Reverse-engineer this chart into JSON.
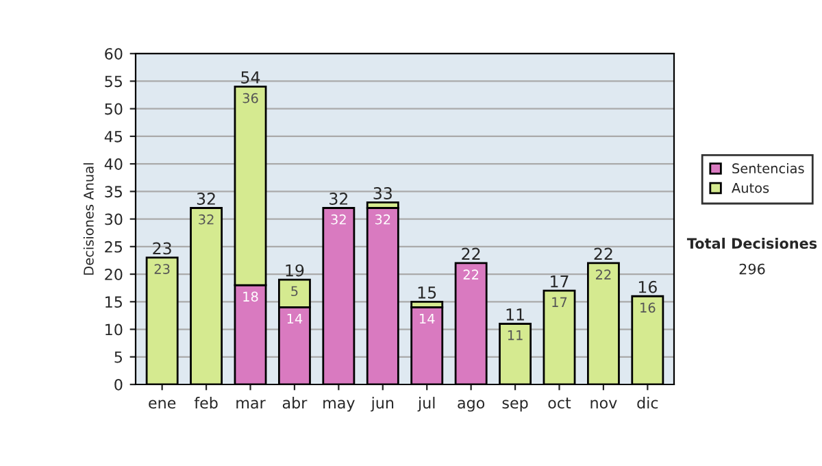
{
  "chart_data": {
    "type": "bar",
    "stacked": true,
    "ylabel": "Decisiones Anual",
    "categories": [
      "ene",
      "feb",
      "mar",
      "abr",
      "may",
      "jun",
      "jul",
      "ago",
      "sep",
      "oct",
      "nov",
      "dic"
    ],
    "series": [
      {
        "name": "Sentencias",
        "color": "#d97ac0",
        "values": [
          null,
          null,
          18,
          14,
          32,
          32,
          14,
          22,
          null,
          null,
          null,
          null
        ],
        "value_labels": [
          null,
          null,
          "18",
          "14",
          "32",
          "32",
          "14",
          "22",
          null,
          null,
          null,
          null
        ]
      },
      {
        "name": "Autos",
        "color": "#d5ea90",
        "values": [
          23,
          32,
          36,
          5,
          null,
          1,
          1,
          null,
          11,
          17,
          22,
          16
        ],
        "value_labels": [
          "23",
          "32",
          "36",
          "5",
          null,
          null,
          null,
          null,
          "11",
          "17",
          "22",
          "16"
        ]
      }
    ],
    "totals": [
      "23",
      "32",
      "54",
      "19",
      "32",
      "33",
      "15",
      "22",
      "11",
      "17",
      "22",
      "16"
    ],
    "ylim": [
      0,
      60
    ],
    "yticks": [
      0,
      5,
      10,
      15,
      20,
      25,
      30,
      35,
      40,
      45,
      50,
      55,
      60
    ],
    "grid": "y",
    "legend": "right",
    "annotations": [
      "Total Decisiones",
      "296"
    ]
  }
}
